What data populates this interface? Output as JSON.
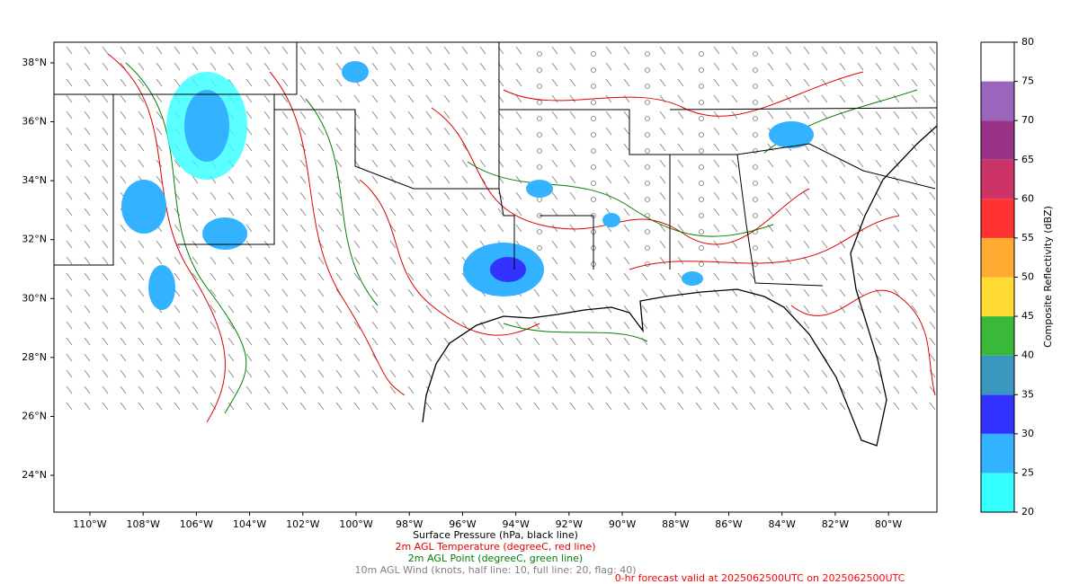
{
  "map": {
    "lonlim": [
      -111.35,
      -78.18
    ],
    "latlim": [
      22.75,
      38.7
    ],
    "lat_ticks": [
      {
        "value": 38,
        "label": "38°N"
      },
      {
        "value": 36,
        "label": "36°N"
      },
      {
        "value": 34,
        "label": "34°N"
      },
      {
        "value": 32,
        "label": "32°N"
      },
      {
        "value": 30,
        "label": "30°N"
      },
      {
        "value": 28,
        "label": "28°N"
      },
      {
        "value": 26,
        "label": "26°N"
      },
      {
        "value": 24,
        "label": "24°N"
      }
    ],
    "lon_ticks": [
      {
        "value": -110,
        "label": "110°W"
      },
      {
        "value": -108,
        "label": "108°W"
      },
      {
        "value": -106,
        "label": "106°W"
      },
      {
        "value": -104,
        "label": "104°W"
      },
      {
        "value": -102,
        "label": "102°W"
      },
      {
        "value": -100,
        "label": "100°W"
      },
      {
        "value": -98,
        "label": "98°W"
      },
      {
        "value": -96,
        "label": "96°W"
      },
      {
        "value": -94,
        "label": "94°W"
      },
      {
        "value": -92,
        "label": "92°W"
      },
      {
        "value": -90,
        "label": "90°W"
      },
      {
        "value": -88,
        "label": "88°W"
      },
      {
        "value": -86,
        "label": "86°W"
      },
      {
        "value": -84,
        "label": "84°W"
      },
      {
        "value": -82,
        "label": "82°W"
      },
      {
        "value": -80,
        "label": "80°W"
      }
    ],
    "colorbar": {
      "label": "Composite Reflectivity (dBZ)",
      "lim": [
        20,
        80
      ],
      "ticks": [
        20,
        25,
        30,
        35,
        40,
        45,
        50,
        55,
        60,
        65,
        70,
        75,
        80
      ],
      "colors": [
        "#33ffff",
        "#33b2ff",
        "#3333ff",
        "#3a98c0",
        "#3ab83a",
        "#ffdb33",
        "#ffaa33",
        "#ff3333",
        "#cc3366",
        "#993388",
        "#9966bb",
        "#ffffff"
      ]
    },
    "captions": [
      {
        "text": "Surface Pressure (hPa, black line)",
        "color": "#000000"
      },
      {
        "text": "2m AGL Temperature (degreeC, red line)",
        "color": "#e00000"
      },
      {
        "text": "2m AGL Point (degreeC, green line)",
        "color": "#008000"
      },
      {
        "text": "10m AGL Wind (knots, half line: 10, full line: 20, flag: 40)",
        "color": "#808080"
      }
    ],
    "valid_text": {
      "text": "0-hr forecast valid at 2025062500UTC on 2025062500UTC",
      "color": "#ff0000"
    }
  }
}
